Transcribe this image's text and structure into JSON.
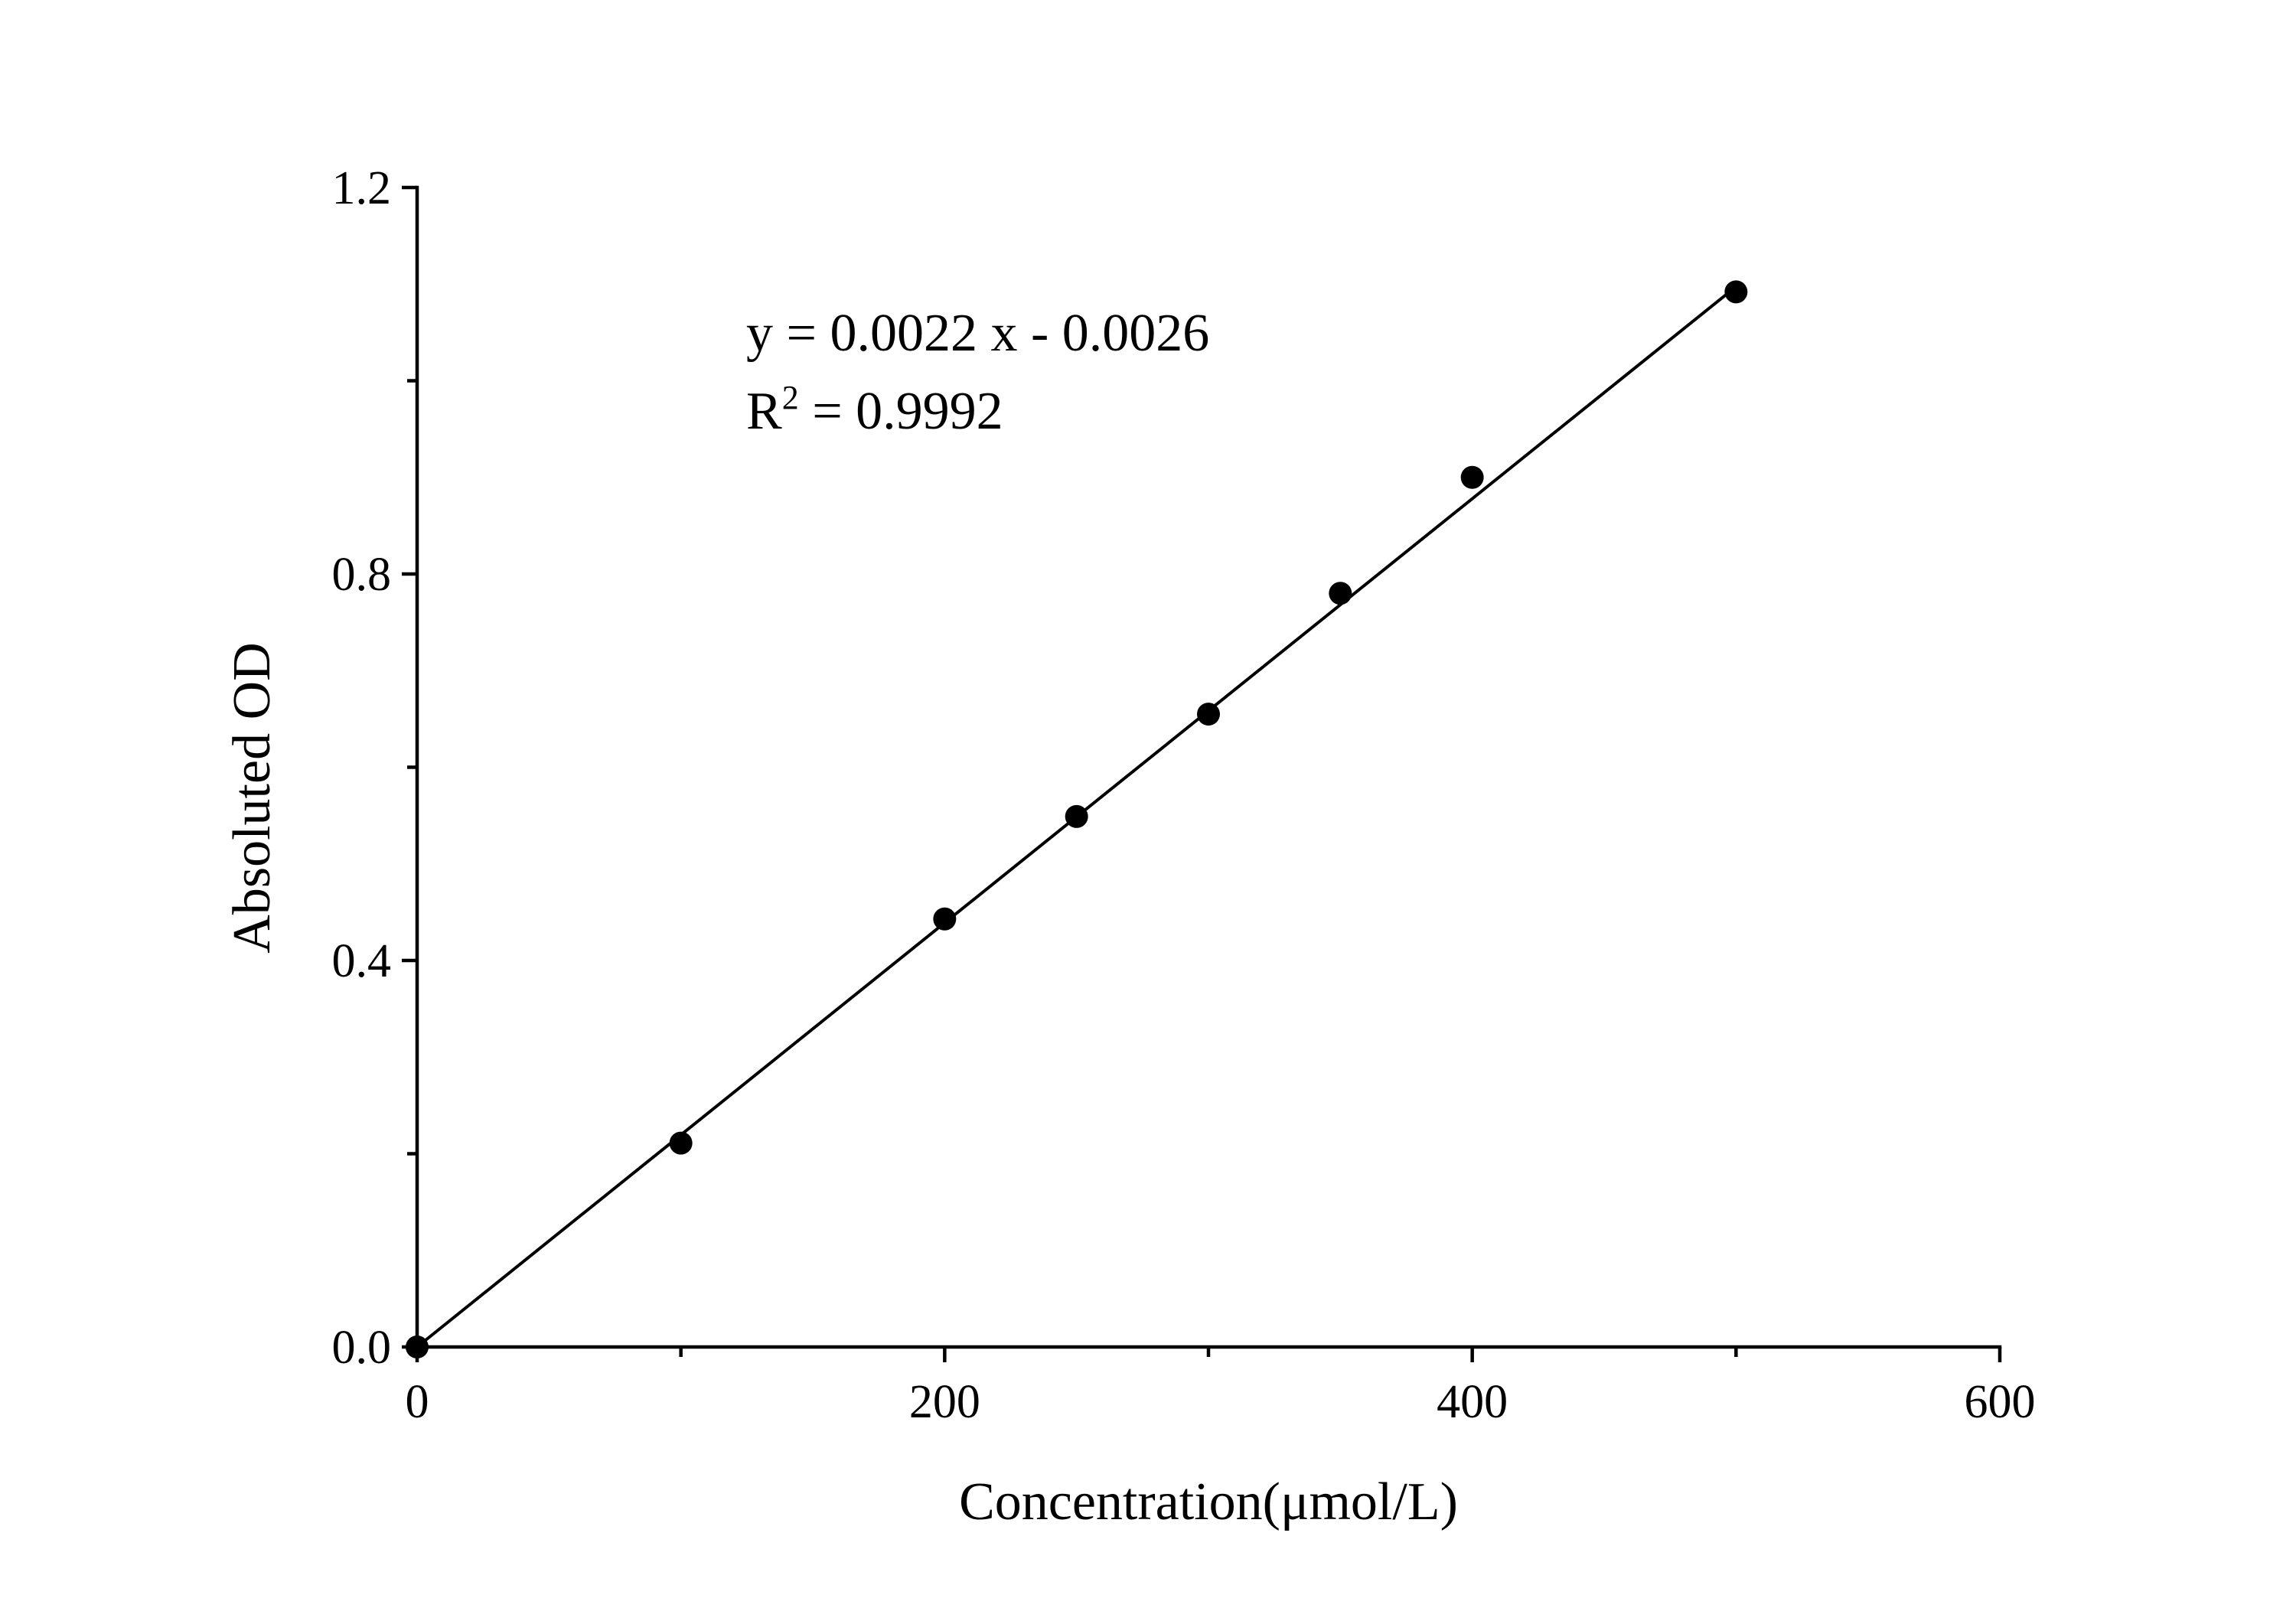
{
  "chart_data": {
    "type": "scatter",
    "xlabel": "Concentration(μmol/L)",
    "ylabel": "Absoluted OD",
    "xlim": [
      0,
      600
    ],
    "ylim": [
      0,
      1.2
    ],
    "x_ticks": [
      "0",
      "200",
      "400",
      "600"
    ],
    "y_ticks": [
      "0.0",
      "0.4",
      "0.8",
      "1.2"
    ],
    "x_minor_ticks": [
      100,
      300,
      500
    ],
    "y_minor_ticks": [
      0.2,
      0.6,
      1.0
    ],
    "grid": false,
    "series": [
      {
        "x": [
          0,
          100,
          200,
          250,
          300,
          350,
          400,
          500
        ],
        "y": [
          0.0,
          0.211,
          0.443,
          0.549,
          0.655,
          0.78,
          0.9,
          1.092
        ],
        "marker": "circle",
        "color": "#000000"
      }
    ],
    "fit": {
      "slope": 0.0022,
      "intercept": -0.0026,
      "x_range": [
        0,
        500
      ],
      "color": "#000000"
    },
    "annotations": {
      "equation": "y = 0.0022 x - 0.0026",
      "r2_prefix": "R",
      "r2_sup": "2",
      "r2_suffix": " = 0.9992"
    }
  }
}
